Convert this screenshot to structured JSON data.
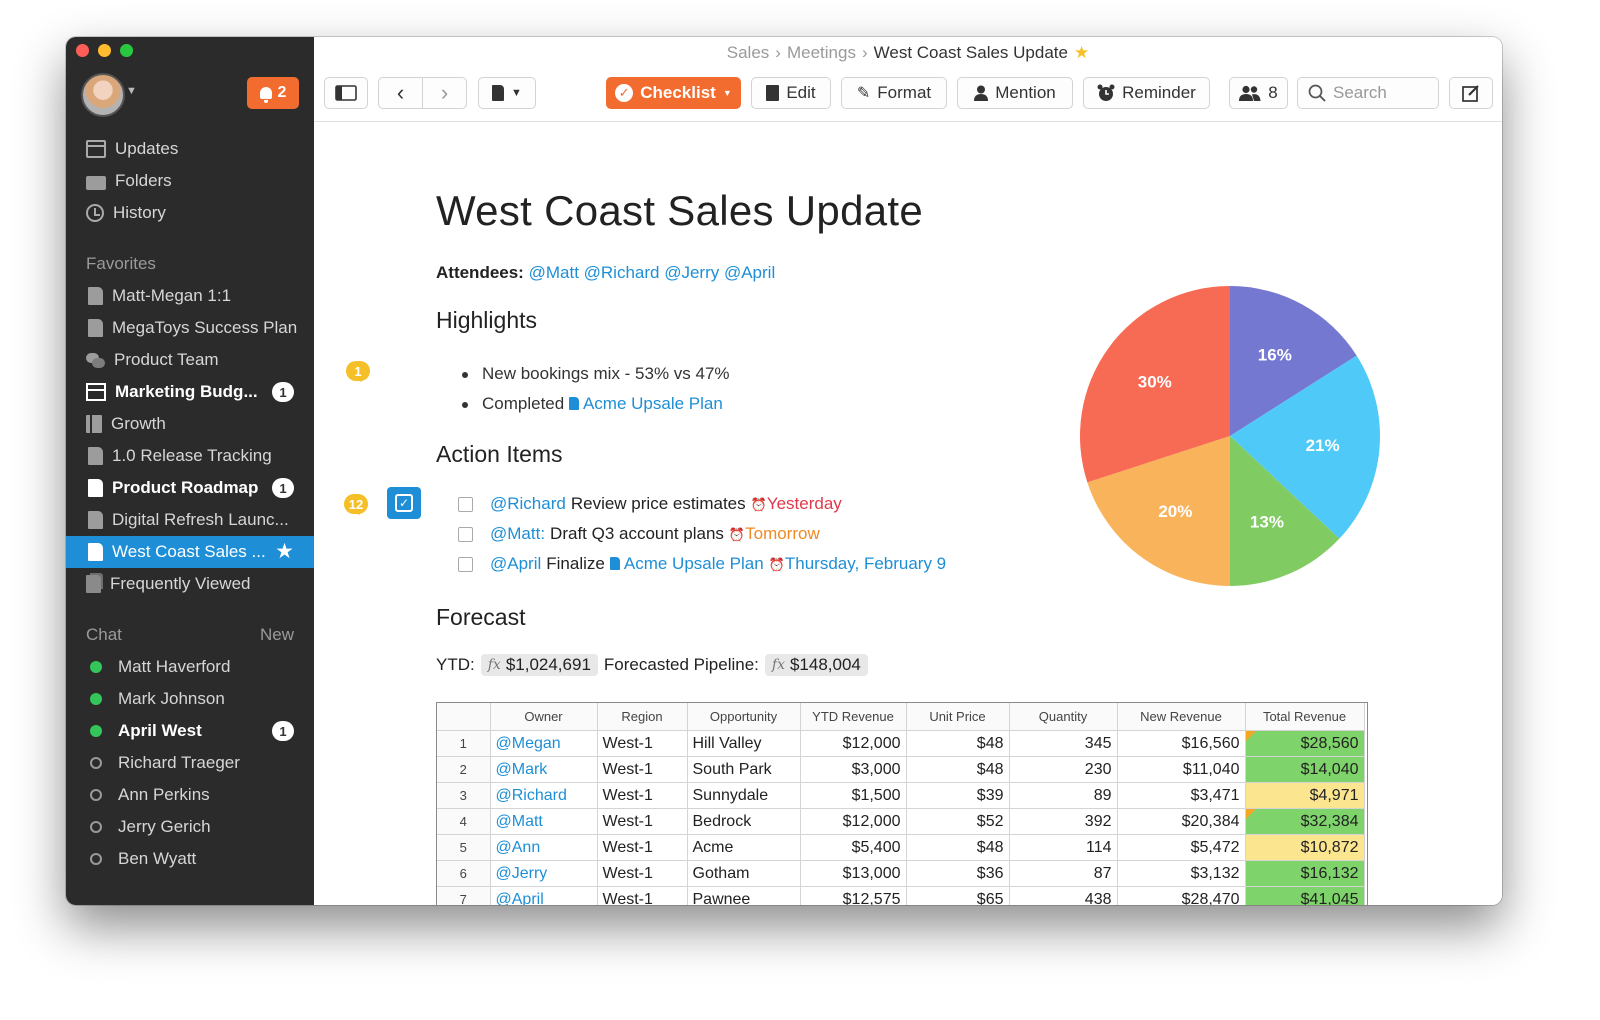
{
  "window": {
    "breadcrumb": [
      "Sales",
      "Meetings",
      "West Coast Sales Update"
    ]
  },
  "sidebar": {
    "notifications_count": "2",
    "nav": [
      {
        "label": "Updates",
        "icon": "updates-icon"
      },
      {
        "label": "Folders",
        "icon": "folders-icon"
      },
      {
        "label": "History",
        "icon": "history-icon"
      }
    ],
    "favorites_header": "Favorites",
    "favorites": [
      {
        "label": "Matt-Megan 1:1",
        "icon": "document-icon"
      },
      {
        "label": "MegaToys Success Plan",
        "icon": "document-icon"
      },
      {
        "label": "Product Team",
        "icon": "chat-bubbles-icon"
      },
      {
        "label": "Marketing Budg...",
        "icon": "spreadsheet-icon",
        "badge": "1",
        "bold": true
      },
      {
        "label": "Growth",
        "icon": "book-icon"
      },
      {
        "label": "1.0 Release Tracking",
        "icon": "document-icon"
      },
      {
        "label": "Product Roadmap",
        "icon": "document-icon",
        "badge": "1",
        "bold": true
      },
      {
        "label": "Digital Refresh Launc...",
        "icon": "document-icon"
      },
      {
        "label": "West Coast Sales ...",
        "icon": "document-icon",
        "active": true
      },
      {
        "label": "Frequently Viewed",
        "icon": "stack-icon"
      }
    ],
    "chat_header": "Chat",
    "chat_new": "New",
    "chat": [
      {
        "label": "Matt Haverford",
        "status": "online"
      },
      {
        "label": "Mark Johnson",
        "status": "online"
      },
      {
        "label": "April West",
        "status": "online",
        "badge": "1",
        "bold": true
      },
      {
        "label": "Richard Traeger",
        "status": "offline"
      },
      {
        "label": "Ann Perkins",
        "status": "offline"
      },
      {
        "label": "Jerry Gerich",
        "status": "offline"
      },
      {
        "label": "Ben Wyatt",
        "status": "offline"
      }
    ]
  },
  "toolbar": {
    "checklist": "Checklist",
    "edit": "Edit",
    "format": "Format",
    "mention": "Mention",
    "reminder": "Reminder",
    "members_count": "8",
    "search_placeholder": "Search"
  },
  "doc": {
    "title": "West Coast Sales Update",
    "attendees_label": "Attendees:",
    "attendees": "@Matt @Richard @Jerry @April",
    "highlights_heading": "Highlights",
    "highlights_comment_count": "1",
    "highlight_1": "New bookings mix - 53% vs 47%",
    "highlight_2_prefix": "Completed",
    "highlight_2_link": "Acme Upsale Plan",
    "action_heading": "Action Items",
    "action_comment_count": "12",
    "actions": [
      {
        "mention": "@Richard",
        "text": "Review price estimates",
        "due": "Yesterday"
      },
      {
        "mention": "@Matt:",
        "text": "Draft Q3 account plans",
        "due": "Tomorrow"
      },
      {
        "mention": "@April",
        "text": "Finalize",
        "link": "Acme Upsale Plan",
        "due": "Thursday, February 9"
      }
    ],
    "forecast_heading": "Forecast",
    "ytd_label": "YTD:",
    "ytd_value": "$1,024,691",
    "pipeline_label": "Forecasted Pipeline:",
    "pipeline_value": "$148,004",
    "fx_symbol": "fx"
  },
  "table": {
    "columns": [
      "",
      "Owner",
      "Region",
      "Opportunity",
      "YTD Revenue",
      "Unit Price",
      "Quantity",
      "New Revenue",
      "Total Revenue"
    ],
    "rows": [
      [
        "1",
        "@Megan",
        "West-1",
        "Hill Valley",
        "$12,000",
        "$48",
        "345",
        "$16,560",
        "$28,560"
      ],
      [
        "2",
        "@Mark",
        "West-1",
        "South Park",
        "$3,000",
        "$48",
        "230",
        "$11,040",
        "$14,040"
      ],
      [
        "3",
        "@Richard",
        "West-1",
        "Sunnydale",
        "$1,500",
        "$39",
        "89",
        "$3,471",
        "$4,971"
      ],
      [
        "4",
        "@Matt",
        "West-1",
        "Bedrock",
        "$12,000",
        "$52",
        "392",
        "$20,384",
        "$32,384"
      ],
      [
        "5",
        "@Ann",
        "West-1",
        "Acme",
        "$5,400",
        "$48",
        "114",
        "$5,472",
        "$10,872"
      ],
      [
        "6",
        "@Jerry",
        "West-1",
        "Gotham",
        "$13,000",
        "$36",
        "87",
        "$3,132",
        "$16,132"
      ],
      [
        "7",
        "@April",
        "West-1",
        "Pawnee",
        "$12,575",
        "$65",
        "438",
        "$28,470",
        "$41,045"
      ]
    ],
    "total_cell_colors": [
      "green",
      "green",
      "yellow",
      "green",
      "yellow",
      "green",
      "green"
    ],
    "flagged_rows": [
      0,
      3
    ]
  },
  "chart_data": {
    "type": "pie",
    "values": [
      16,
      21,
      13,
      20,
      30
    ],
    "labels": [
      "16%",
      "21%",
      "13%",
      "20%",
      "30%"
    ],
    "colors": [
      "#7478d0",
      "#4fc9f7",
      "#80cc63",
      "#f9b45b",
      "#f76b55"
    ]
  },
  "colors": {
    "accent": "#f26b2f",
    "link": "#1e8fd6",
    "sidebar_bg": "#2b2b2b",
    "active_item": "#1e8fd6"
  }
}
